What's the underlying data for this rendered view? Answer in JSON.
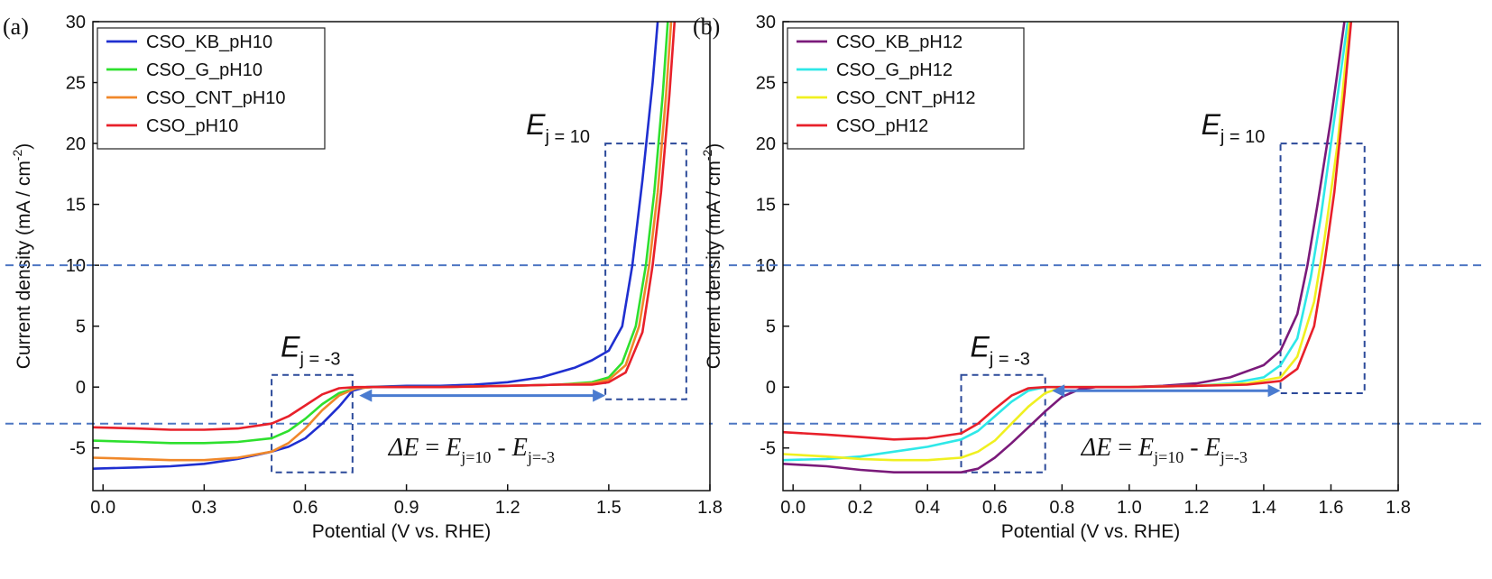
{
  "chart_data": [
    {
      "panel_label": "(a)",
      "type": "line",
      "xlabel": "Potential (V vs. RHE)",
      "ylabel": "Current density (mA / cm",
      "ylabel_sup": "-2",
      "ylabel_close": ")",
      "xlim": [
        -0.03,
        1.8
      ],
      "ylim": [
        -8.5,
        30
      ],
      "xticks": [
        0.0,
        0.3,
        0.6,
        0.9,
        1.2,
        1.5,
        1.8
      ],
      "xtick_labels": [
        "0.0",
        "0.3",
        "0.6",
        "0.9",
        "1.2",
        "1.5",
        "1.8"
      ],
      "yticks": [
        -5,
        0,
        5,
        10,
        15,
        20,
        25,
        30
      ],
      "ytick_labels": [
        "-5",
        "0",
        "5",
        "10",
        "15",
        "20",
        "25",
        "30"
      ],
      "legend_position": "top-left",
      "series": [
        {
          "name": "CSO_KB_pH10",
          "color": "#1f2fd0",
          "points": [
            [
              -0.03,
              -6.7
            ],
            [
              0.1,
              -6.6
            ],
            [
              0.2,
              -6.5
            ],
            [
              0.3,
              -6.3
            ],
            [
              0.4,
              -5.9
            ],
            [
              0.5,
              -5.3
            ],
            [
              0.55,
              -4.9
            ],
            [
              0.6,
              -4.2
            ],
            [
              0.65,
              -3.0
            ],
            [
              0.7,
              -1.6
            ],
            [
              0.74,
              -0.3
            ],
            [
              0.78,
              0.0
            ],
            [
              0.9,
              0.1
            ],
            [
              1.0,
              0.1
            ],
            [
              1.1,
              0.2
            ],
            [
              1.2,
              0.4
            ],
            [
              1.3,
              0.8
            ],
            [
              1.4,
              1.6
            ],
            [
              1.45,
              2.2
            ],
            [
              1.5,
              3.0
            ],
            [
              1.54,
              5.0
            ],
            [
              1.57,
              10.0
            ],
            [
              1.6,
              17.0
            ],
            [
              1.63,
              25.0
            ],
            [
              1.645,
              30.0
            ]
          ]
        },
        {
          "name": "CSO_G_pH10",
          "color": "#2ee02e",
          "points": [
            [
              -0.03,
              -4.4
            ],
            [
              0.1,
              -4.5
            ],
            [
              0.2,
              -4.6
            ],
            [
              0.3,
              -4.6
            ],
            [
              0.4,
              -4.5
            ],
            [
              0.5,
              -4.2
            ],
            [
              0.55,
              -3.6
            ],
            [
              0.6,
              -2.6
            ],
            [
              0.65,
              -1.4
            ],
            [
              0.7,
              -0.5
            ],
            [
              0.75,
              -0.1
            ],
            [
              0.8,
              0.0
            ],
            [
              1.0,
              0.0
            ],
            [
              1.2,
              0.1
            ],
            [
              1.35,
              0.2
            ],
            [
              1.45,
              0.4
            ],
            [
              1.5,
              0.8
            ],
            [
              1.54,
              2.0
            ],
            [
              1.58,
              5.0
            ],
            [
              1.61,
              10.0
            ],
            [
              1.635,
              16.0
            ],
            [
              1.66,
              24.0
            ],
            [
              1.675,
              30.0
            ]
          ]
        },
        {
          "name": "CSO_CNT_pH10",
          "color": "#f0882a",
          "points": [
            [
              -0.03,
              -5.8
            ],
            [
              0.1,
              -5.9
            ],
            [
              0.2,
              -6.0
            ],
            [
              0.3,
              -6.0
            ],
            [
              0.4,
              -5.8
            ],
            [
              0.5,
              -5.3
            ],
            [
              0.55,
              -4.6
            ],
            [
              0.6,
              -3.4
            ],
            [
              0.65,
              -1.9
            ],
            [
              0.7,
              -0.7
            ],
            [
              0.75,
              -0.1
            ],
            [
              0.8,
              0.0
            ],
            [
              1.0,
              0.0
            ],
            [
              1.2,
              0.1
            ],
            [
              1.35,
              0.2
            ],
            [
              1.45,
              0.3
            ],
            [
              1.5,
              0.6
            ],
            [
              1.55,
              1.8
            ],
            [
              1.59,
              5.0
            ],
            [
              1.62,
              10.0
            ],
            [
              1.645,
              16.0
            ],
            [
              1.67,
              24.0
            ],
            [
              1.685,
              30.0
            ]
          ]
        },
        {
          "name": "CSO_pH10",
          "color": "#e8202a",
          "points": [
            [
              -0.03,
              -3.3
            ],
            [
              0.1,
              -3.4
            ],
            [
              0.2,
              -3.5
            ],
            [
              0.3,
              -3.5
            ],
            [
              0.4,
              -3.4
            ],
            [
              0.5,
              -3.0
            ],
            [
              0.55,
              -2.4
            ],
            [
              0.6,
              -1.5
            ],
            [
              0.65,
              -0.6
            ],
            [
              0.7,
              -0.1
            ],
            [
              0.75,
              0.0
            ],
            [
              1.0,
              0.0
            ],
            [
              1.2,
              0.1
            ],
            [
              1.35,
              0.2
            ],
            [
              1.45,
              0.2
            ],
            [
              1.5,
              0.4
            ],
            [
              1.55,
              1.2
            ],
            [
              1.6,
              4.5
            ],
            [
              1.63,
              10.0
            ],
            [
              1.655,
              16.0
            ],
            [
              1.68,
              24.0
            ],
            [
              1.695,
              30.0
            ]
          ]
        }
      ],
      "annotations": {
        "ej10": {
          "base": "E",
          "sub": "j = 10"
        },
        "ejm3": {
          "base": "E",
          "sub": "j = -3"
        },
        "delta": {
          "lhs": "ΔE",
          "eq": " = ",
          "e1": "E",
          "s1": "j=10",
          "mid": " - ",
          "e2": "E",
          "s2": "j=-3"
        }
      },
      "reference_lines_y": [
        10,
        -3
      ],
      "box_high": {
        "x": [
          1.49,
          1.73
        ],
        "y": [
          -1,
          20
        ]
      },
      "box_low": {
        "x": [
          0.5,
          0.74
        ],
        "y": [
          -7,
          1
        ]
      },
      "arrow": {
        "x": [
          0.76,
          1.49
        ],
        "y": -0.7
      }
    },
    {
      "panel_label": "(b)",
      "type": "line",
      "xlabel": "Potential (V vs. RHE)",
      "ylabel": "Current density (mA / cm",
      "ylabel_sup": "-2",
      "ylabel_close": ")",
      "xlim": [
        -0.03,
        1.8
      ],
      "ylim": [
        -8.5,
        30
      ],
      "xticks": [
        0.0,
        0.2,
        0.4,
        0.6,
        0.8,
        1.0,
        1.2,
        1.4,
        1.6,
        1.8
      ],
      "xtick_labels": [
        "0.0",
        "0.2",
        "0.4",
        "0.6",
        "0.8",
        "1.0",
        "1.2",
        "1.4",
        "1.6",
        "1.8"
      ],
      "yticks": [
        -5,
        0,
        5,
        10,
        15,
        20,
        25,
        30
      ],
      "ytick_labels": [
        "-5",
        "0",
        "5",
        "10",
        "15",
        "20",
        "25",
        "30"
      ],
      "legend_position": "top-left",
      "series": [
        {
          "name": "CSO_KB_pH12",
          "color": "#7a1a7a",
          "points": [
            [
              -0.03,
              -6.3
            ],
            [
              0.1,
              -6.5
            ],
            [
              0.2,
              -6.8
            ],
            [
              0.3,
              -7.0
            ],
            [
              0.4,
              -7.0
            ],
            [
              0.5,
              -7.0
            ],
            [
              0.55,
              -6.7
            ],
            [
              0.6,
              -5.8
            ],
            [
              0.65,
              -4.6
            ],
            [
              0.7,
              -3.3
            ],
            [
              0.75,
              -2.0
            ],
            [
              0.8,
              -0.8
            ],
            [
              0.85,
              -0.2
            ],
            [
              0.9,
              0.0
            ],
            [
              1.0,
              0.0
            ],
            [
              1.1,
              0.1
            ],
            [
              1.2,
              0.3
            ],
            [
              1.3,
              0.8
            ],
            [
              1.4,
              1.8
            ],
            [
              1.45,
              3.0
            ],
            [
              1.5,
              6.0
            ],
            [
              1.53,
              10.0
            ],
            [
              1.56,
              15.0
            ],
            [
              1.6,
              22.0
            ],
            [
              1.64,
              30.0
            ]
          ]
        },
        {
          "name": "CSO_G_pH12",
          "color": "#2ee8e8",
          "points": [
            [
              -0.03,
              -6.0
            ],
            [
              0.1,
              -5.9
            ],
            [
              0.2,
              -5.7
            ],
            [
              0.3,
              -5.3
            ],
            [
              0.4,
              -4.9
            ],
            [
              0.5,
              -4.3
            ],
            [
              0.55,
              -3.6
            ],
            [
              0.6,
              -2.4
            ],
            [
              0.65,
              -1.2
            ],
            [
              0.7,
              -0.3
            ],
            [
              0.75,
              0.0
            ],
            [
              1.0,
              0.0
            ],
            [
              1.2,
              0.1
            ],
            [
              1.3,
              0.3
            ],
            [
              1.4,
              0.8
            ],
            [
              1.45,
              1.8
            ],
            [
              1.5,
              4.0
            ],
            [
              1.54,
              9.0
            ],
            [
              1.57,
              14.0
            ],
            [
              1.6,
              20.0
            ],
            [
              1.64,
              28.0
            ],
            [
              1.65,
              30.0
            ]
          ]
        },
        {
          "name": "CSO_CNT_pH12",
          "color": "#f0f020",
          "points": [
            [
              -0.03,
              -5.5
            ],
            [
              0.1,
              -5.7
            ],
            [
              0.2,
              -5.9
            ],
            [
              0.3,
              -6.0
            ],
            [
              0.4,
              -6.0
            ],
            [
              0.5,
              -5.8
            ],
            [
              0.55,
              -5.3
            ],
            [
              0.6,
              -4.4
            ],
            [
              0.65,
              -3.0
            ],
            [
              0.7,
              -1.6
            ],
            [
              0.75,
              -0.5
            ],
            [
              0.8,
              0.0
            ],
            [
              1.0,
              0.0
            ],
            [
              1.2,
              0.1
            ],
            [
              1.35,
              0.3
            ],
            [
              1.45,
              0.8
            ],
            [
              1.5,
              2.5
            ],
            [
              1.55,
              7.0
            ],
            [
              1.58,
              12.0
            ],
            [
              1.62,
              20.0
            ],
            [
              1.655,
              30.0
            ]
          ]
        },
        {
          "name": "CSO_pH12",
          "color": "#e8202a",
          "points": [
            [
              -0.03,
              -3.7
            ],
            [
              0.1,
              -3.9
            ],
            [
              0.2,
              -4.1
            ],
            [
              0.3,
              -4.3
            ],
            [
              0.4,
              -4.2
            ],
            [
              0.5,
              -3.8
            ],
            [
              0.55,
              -3.0
            ],
            [
              0.6,
              -1.8
            ],
            [
              0.65,
              -0.7
            ],
            [
              0.7,
              -0.1
            ],
            [
              0.75,
              0.0
            ],
            [
              1.0,
              0.0
            ],
            [
              1.2,
              0.1
            ],
            [
              1.35,
              0.2
            ],
            [
              1.45,
              0.5
            ],
            [
              1.5,
              1.5
            ],
            [
              1.55,
              5.0
            ],
            [
              1.58,
              10.0
            ],
            [
              1.61,
              16.0
            ],
            [
              1.64,
              24.0
            ],
            [
              1.66,
              30.0
            ]
          ]
        }
      ],
      "annotations": {
        "ej10": {
          "base": "E",
          "sub": "j = 10"
        },
        "ejm3": {
          "base": "E",
          "sub": "j = -3"
        },
        "delta": {
          "lhs": "ΔE",
          "eq": " = ",
          "e1": "E",
          "s1": "j=10",
          "mid": " - ",
          "e2": "E",
          "s2": "j=-3"
        }
      },
      "reference_lines_y": [
        10,
        -3
      ],
      "box_high": {
        "x": [
          1.45,
          1.7
        ],
        "y": [
          -0.5,
          20
        ]
      },
      "box_low": {
        "x": [
          0.5,
          0.75
        ],
        "y": [
          -7,
          1
        ]
      },
      "arrow": {
        "x": [
          0.77,
          1.45
        ],
        "y": -0.3
      }
    }
  ]
}
